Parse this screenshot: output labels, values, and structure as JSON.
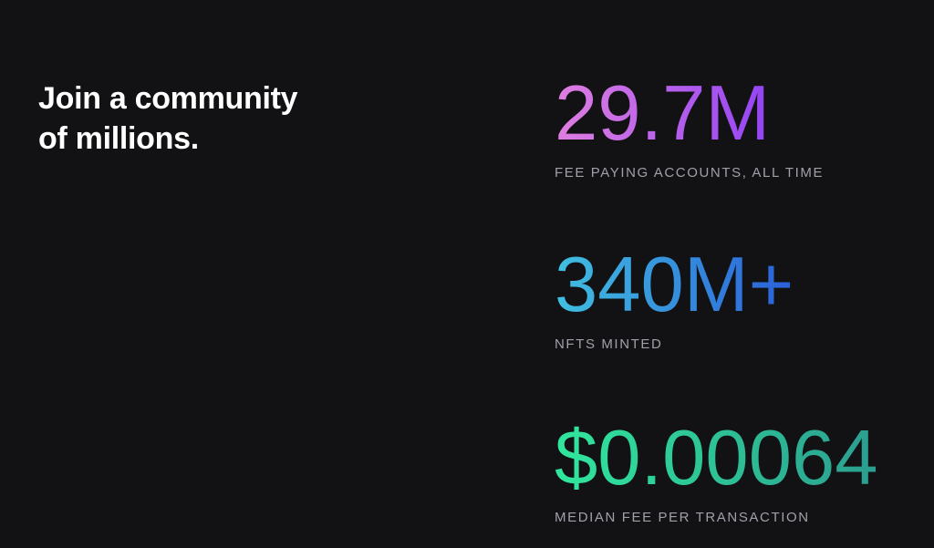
{
  "theme": {
    "background": "#121214",
    "heading_color": "#ffffff",
    "label_color": "#a0a0aa"
  },
  "heading": {
    "line1": "Join a community",
    "line2": "of millions."
  },
  "stats": [
    {
      "value": "29.7M",
      "label": "FEE PAYING ACCOUNTS, ALL TIME",
      "gradient": {
        "from": "#e07fe0",
        "to": "#9344f5"
      }
    },
    {
      "value": "340M+",
      "label": "NFTS MINTED",
      "gradient": {
        "from": "#41c0e0",
        "to": "#2a5fd9"
      }
    },
    {
      "value": "$0.00064",
      "label": "MEDIAN FEE PER TRANSACTION",
      "gradient": {
        "from": "#30e79c",
        "to": "#2b9d90"
      }
    }
  ]
}
